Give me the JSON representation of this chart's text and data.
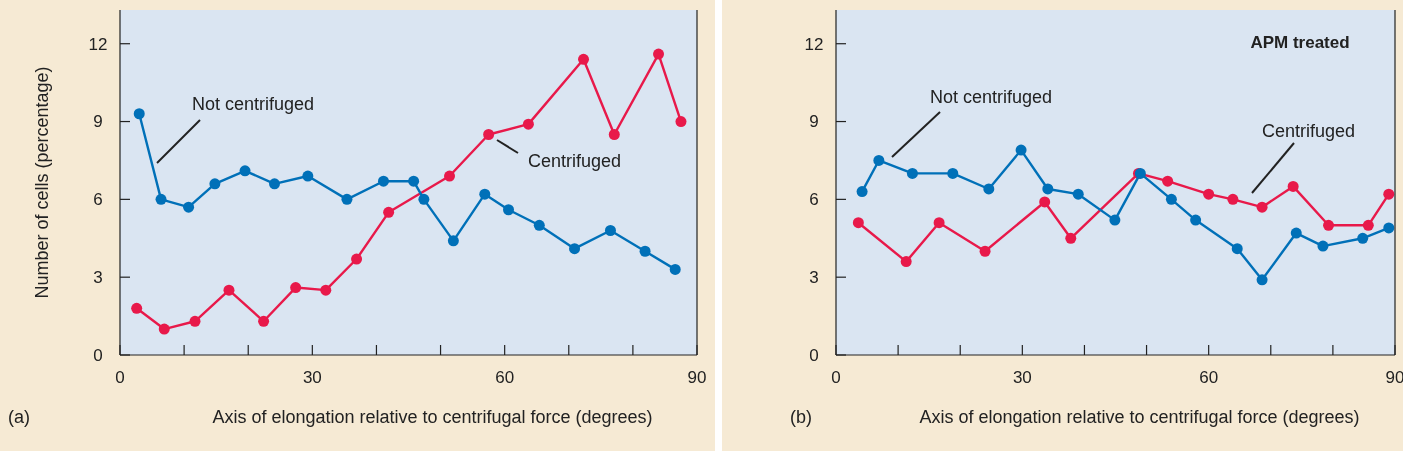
{
  "chart_data": [
    {
      "type": "line",
      "xlabel": "Axis of elongation relative to centrifugal force (degrees)",
      "ylabel": "Number of cells (percentage)",
      "annotations": [
        "(a)"
      ],
      "xlim": [
        0,
        90
      ],
      "ylim": [
        0,
        13.3
      ],
      "xticks": [
        0,
        {
          "value": 10,
          "label": null
        },
        {
          "value": 20,
          "label": null
        },
        30,
        {
          "value": 40,
          "label": null
        },
        {
          "value": 50,
          "label": null
        },
        60,
        {
          "value": 70,
          "label": null
        },
        {
          "value": 80,
          "label": null
        },
        90
      ],
      "yticks": [
        0,
        3,
        6,
        9,
        12
      ],
      "grid": false,
      "marker": "circle",
      "line_style": "solid",
      "series": [
        {
          "name": "Not centrifuged",
          "color": "#0070b8",
          "x": [
            3,
            6.4,
            10.7,
            14.8,
            19.5,
            24.1,
            29.3,
            35.4,
            41.1,
            45.8,
            47.4,
            52,
            56.9,
            60.6,
            65.4,
            70.9,
            76.5,
            81.9,
            86.6
          ],
          "values": [
            9.3,
            6.0,
            5.7,
            6.6,
            7.1,
            6.6,
            6.9,
            6.0,
            6.7,
            6.7,
            6.0,
            4.4,
            6.2,
            5.6,
            5.0,
            4.1,
            4.8,
            4.0,
            3.3
          ]
        },
        {
          "name": "Centrifuged",
          "color": "#e8194a",
          "x": [
            2.6,
            6.9,
            11.7,
            17,
            22.4,
            27.4,
            32.1,
            36.9,
            41.9,
            51.4,
            57.5,
            63.7,
            72.3,
            77.1,
            84,
            87.5
          ],
          "values": [
            1.8,
            1.0,
            1.3,
            2.5,
            1.3,
            2.6,
            2.5,
            3.7,
            5.5,
            6.9,
            8.5,
            8.9,
            11.4,
            8.5,
            11.6,
            9.0
          ]
        }
      ]
    },
    {
      "type": "line",
      "title": "APM treated",
      "xlabel": "Axis of elongation relative to centrifugal force (degrees)",
      "annotations": [
        "(b)"
      ],
      "xlim": [
        0,
        90
      ],
      "ylim": [
        0,
        13.3
      ],
      "xticks": [
        0,
        {
          "value": 10,
          "label": null
        },
        {
          "value": 20,
          "label": null
        },
        30,
        {
          "value": 40,
          "label": null
        },
        {
          "value": 50,
          "label": null
        },
        60,
        {
          "value": 70,
          "label": null
        },
        {
          "value": 80,
          "label": null
        },
        90
      ],
      "yticks": [
        0,
        3,
        6,
        9,
        12
      ],
      "grid": false,
      "marker": "circle",
      "line_style": "solid",
      "series": [
        {
          "name": "Not centrifuged",
          "color": "#0070b8",
          "x": [
            4.2,
            6.9,
            12.3,
            18.8,
            24.6,
            29.8,
            34.1,
            39,
            44.9,
            49,
            54,
            57.9,
            64.6,
            68.6,
            74.1,
            78.4,
            84.8,
            89
          ],
          "values": [
            6.3,
            7.5,
            7.0,
            7.0,
            6.4,
            7.9,
            6.4,
            6.2,
            5.2,
            7.0,
            6.0,
            5.2,
            4.1,
            2.9,
            4.7,
            4.2,
            4.5,
            4.9
          ]
        },
        {
          "name": "Centrifuged",
          "color": "#e8194a",
          "x": [
            3.6,
            11.3,
            16.6,
            24,
            33.6,
            37.8,
            48.7,
            53.4,
            60,
            63.9,
            68.6,
            73.6,
            79.3,
            85.7,
            89
          ],
          "values": [
            5.1,
            3.6,
            5.1,
            4.0,
            5.9,
            4.5,
            7.0,
            6.7,
            6.2,
            6.0,
            5.7,
            6.5,
            5.0,
            5.0,
            6.2
          ]
        }
      ]
    }
  ]
}
